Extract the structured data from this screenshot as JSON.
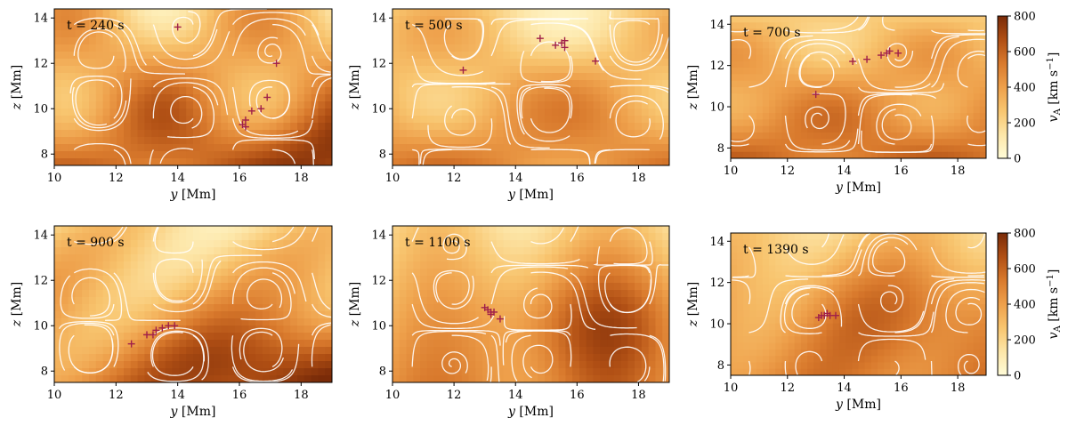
{
  "figure": {
    "xlabel_var": "y",
    "xlabel_unit": "[Mm]",
    "ylabel_var": "z",
    "ylabel_unit": "[Mm]",
    "colorbar_label_var": "v",
    "colorbar_label_sub": "A",
    "colorbar_label_unit_pre": "[km s",
    "colorbar_label_unit_exp": "−1",
    "colorbar_label_unit_post": "]",
    "colorbar_ticks": [
      0,
      200,
      400,
      600,
      800
    ],
    "colorbar_range": [
      0,
      800
    ],
    "colormap": [
      "#fffcd8",
      "#fde6a8",
      "#f8c56f",
      "#eea04b",
      "#d97a2d",
      "#b04f14",
      "#7a2b08"
    ],
    "streamline_color": "#ffffff",
    "marker_color": "#a0204a",
    "marker_symbol": "+"
  },
  "chart_data": [
    {
      "type": "heatmap",
      "title": "t = 240 s",
      "xlim": [
        10,
        19
      ],
      "ylim": [
        7.5,
        14.4
      ],
      "xticks": [
        10,
        12,
        14,
        16,
        18
      ],
      "yticks": [
        8,
        10,
        12,
        14
      ],
      "markers": [
        [
          14.0,
          13.6
        ],
        [
          17.2,
          12.0
        ],
        [
          16.9,
          10.5
        ],
        [
          16.7,
          10.0
        ],
        [
          16.4,
          9.9
        ],
        [
          16.2,
          9.5
        ],
        [
          16.1,
          9.3
        ],
        [
          16.2,
          9.2
        ]
      ]
    },
    {
      "type": "heatmap",
      "title": "t = 500 s",
      "xlim": [
        10,
        19
      ],
      "ylim": [
        7.5,
        14.4
      ],
      "xticks": [
        10,
        12,
        14,
        16,
        18
      ],
      "yticks": [
        8,
        10,
        12,
        14
      ],
      "markers": [
        [
          12.3,
          11.7
        ],
        [
          14.8,
          13.1
        ],
        [
          15.3,
          12.8
        ],
        [
          15.5,
          12.9
        ],
        [
          15.6,
          12.7
        ],
        [
          15.6,
          13.0
        ],
        [
          16.6,
          12.1
        ]
      ]
    },
    {
      "type": "heatmap",
      "title": "t = 700 s",
      "xlim": [
        10,
        19
      ],
      "ylim": [
        7.5,
        14.4
      ],
      "xticks": [
        10,
        12,
        14,
        16,
        18
      ],
      "yticks": [
        8,
        10,
        12,
        14
      ],
      "markers": [
        [
          13.0,
          10.6
        ],
        [
          14.3,
          12.2
        ],
        [
          14.8,
          12.3
        ],
        [
          15.3,
          12.5
        ],
        [
          15.5,
          12.6
        ],
        [
          15.6,
          12.7
        ],
        [
          15.9,
          12.6
        ]
      ]
    },
    {
      "type": "heatmap",
      "title": "t = 900 s",
      "xlim": [
        10,
        19
      ],
      "ylim": [
        7.5,
        14.4
      ],
      "xticks": [
        10,
        12,
        14,
        16,
        18
      ],
      "yticks": [
        8,
        10,
        12,
        14
      ],
      "markers": [
        [
          12.5,
          9.2
        ],
        [
          13.0,
          9.6
        ],
        [
          13.2,
          9.6
        ],
        [
          13.3,
          9.8
        ],
        [
          13.5,
          9.9
        ],
        [
          13.7,
          10.0
        ],
        [
          13.9,
          10.0
        ]
      ]
    },
    {
      "type": "heatmap",
      "title": "t = 1100 s",
      "xlim": [
        10,
        19
      ],
      "ylim": [
        7.5,
        14.4
      ],
      "xticks": [
        10,
        12,
        14,
        16,
        18
      ],
      "yticks": [
        8,
        10,
        12,
        14
      ],
      "markers": [
        [
          13.0,
          10.8
        ],
        [
          13.1,
          10.7
        ],
        [
          13.2,
          10.6
        ],
        [
          13.3,
          10.6
        ],
        [
          13.2,
          10.5
        ],
        [
          13.5,
          10.3
        ]
      ]
    },
    {
      "type": "heatmap",
      "title": "t = 1390 s",
      "xlim": [
        10,
        19
      ],
      "ylim": [
        7.5,
        14.4
      ],
      "xticks": [
        10,
        12,
        14,
        16,
        18
      ],
      "yticks": [
        8,
        10,
        12,
        14
      ],
      "markers": [
        [
          13.1,
          10.3
        ],
        [
          13.2,
          10.4
        ],
        [
          13.3,
          10.4
        ],
        [
          13.4,
          10.5
        ],
        [
          13.5,
          10.4
        ],
        [
          13.7,
          10.4
        ]
      ]
    }
  ]
}
